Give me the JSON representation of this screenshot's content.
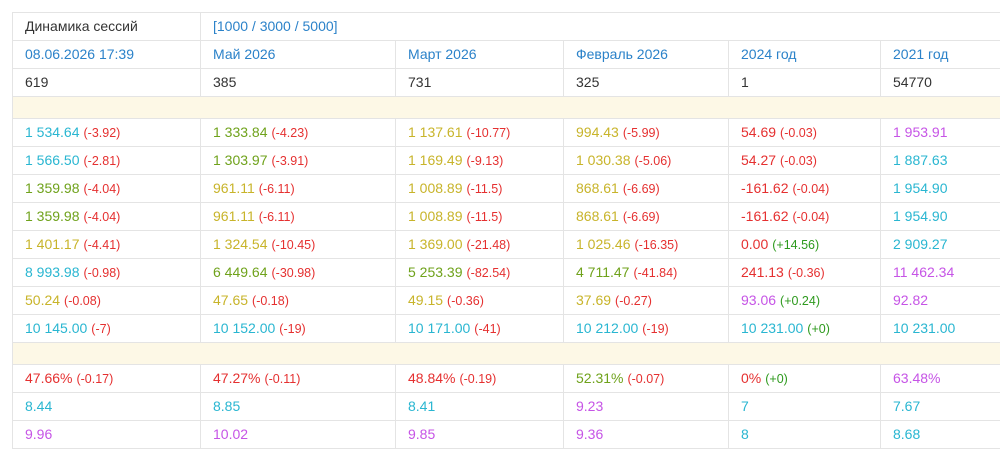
{
  "header": {
    "title": "Динамика сессий",
    "limits": "[1000 / 3000 / 5000]"
  },
  "columns": [
    {
      "label": "08.06.2026 17:39",
      "count": "619"
    },
    {
      "label": "Май 2026",
      "count": "385"
    },
    {
      "label": "Март 2026",
      "count": "731"
    },
    {
      "label": "Февраль 2026",
      "count": "325"
    },
    {
      "label": "2024 год",
      "count": "1"
    },
    {
      "label": "2021 год",
      "count": "54770"
    }
  ],
  "sections": [
    {
      "rows": [
        [
          {
            "value": "1 534.64",
            "change": "(-3.92)",
            "color": "#29b6d1",
            "change_color": "#e53030"
          },
          {
            "value": "1 333.84",
            "change": "(-4.23)",
            "color": "#6fa21b",
            "change_color": "#e53030"
          },
          {
            "value": "1 137.61",
            "change": "(-10.77)",
            "color": "#c8b42a",
            "change_color": "#e53030"
          },
          {
            "value": "994.43",
            "change": "(-5.99)",
            "color": "#c8b42a",
            "change_color": "#e53030"
          },
          {
            "value": "54.69",
            "change": "(-0.03)",
            "color": "#e53030",
            "change_color": "#e53030"
          },
          {
            "value": "1 953.91",
            "color": "#c654e6"
          }
        ],
        [
          {
            "value": "1 566.50",
            "change": "(-2.81)",
            "color": "#29b6d1",
            "change_color": "#e53030"
          },
          {
            "value": "1 303.97",
            "change": "(-3.91)",
            "color": "#6fa21b",
            "change_color": "#e53030"
          },
          {
            "value": "1 169.49",
            "change": "(-9.13)",
            "color": "#c8b42a",
            "change_color": "#e53030"
          },
          {
            "value": "1 030.38",
            "change": "(-5.06)",
            "color": "#c8b42a",
            "change_color": "#e53030"
          },
          {
            "value": "54.27",
            "change": "(-0.03)",
            "color": "#e53030",
            "change_color": "#e53030"
          },
          {
            "value": "1 887.63",
            "color": "#29b6d1"
          }
        ],
        [
          {
            "value": "1 359.98",
            "change": "(-4.04)",
            "color": "#6fa21b",
            "change_color": "#e53030"
          },
          {
            "value": "961.11",
            "change": "(-6.11)",
            "color": "#c8b42a",
            "change_color": "#e53030"
          },
          {
            "value": "1 008.89",
            "change": "(-11.5)",
            "color": "#c8b42a",
            "change_color": "#e53030"
          },
          {
            "value": "868.61",
            "change": "(-6.69)",
            "color": "#c8b42a",
            "change_color": "#e53030"
          },
          {
            "value": "-161.62",
            "change": "(-0.04)",
            "color": "#e53030",
            "change_color": "#e53030"
          },
          {
            "value": "1 954.90",
            "color": "#29b6d1"
          }
        ],
        [
          {
            "value": "1 359.98",
            "change": "(-4.04)",
            "color": "#6fa21b",
            "change_color": "#e53030"
          },
          {
            "value": "961.11",
            "change": "(-6.11)",
            "color": "#c8b42a",
            "change_color": "#e53030"
          },
          {
            "value": "1 008.89",
            "change": "(-11.5)",
            "color": "#c8b42a",
            "change_color": "#e53030"
          },
          {
            "value": "868.61",
            "change": "(-6.69)",
            "color": "#c8b42a",
            "change_color": "#e53030"
          },
          {
            "value": "-161.62",
            "change": "(-0.04)",
            "color": "#e53030",
            "change_color": "#e53030"
          },
          {
            "value": "1 954.90",
            "color": "#29b6d1"
          }
        ],
        [
          {
            "value": "1 401.17",
            "change": "(-4.41)",
            "color": "#c8b42a",
            "change_color": "#e53030"
          },
          {
            "value": "1 324.54",
            "change": "(-10.45)",
            "color": "#c8b42a",
            "change_color": "#e53030"
          },
          {
            "value": "1 369.00",
            "change": "(-21.48)",
            "color": "#c8b42a",
            "change_color": "#e53030"
          },
          {
            "value": "1 025.46",
            "change": "(-16.35)",
            "color": "#c8b42a",
            "change_color": "#e53030"
          },
          {
            "value": "0.00",
            "change": "(+14.56)",
            "color": "#e53030",
            "change_color": "#2e9a1e"
          },
          {
            "value": "2 909.27",
            "color": "#29b6d1"
          }
        ],
        [
          {
            "value": "8 993.98",
            "change": "(-0.98)",
            "color": "#29b6d1",
            "change_color": "#e53030"
          },
          {
            "value": "6 449.64",
            "change": "(-30.98)",
            "color": "#6fa21b",
            "change_color": "#e53030"
          },
          {
            "value": "5 253.39",
            "change": "(-82.54)",
            "color": "#6fa21b",
            "change_color": "#e53030"
          },
          {
            "value": "4 711.47",
            "change": "(-41.84)",
            "color": "#6fa21b",
            "change_color": "#e53030"
          },
          {
            "value": "241.13",
            "change": "(-0.36)",
            "color": "#e53030",
            "change_color": "#e53030"
          },
          {
            "value": "11 462.34",
            "color": "#c654e6"
          }
        ],
        [
          {
            "value": "50.24",
            "change": "(-0.08)",
            "color": "#c8b42a",
            "change_color": "#e53030"
          },
          {
            "value": "47.65",
            "change": "(-0.18)",
            "color": "#c8b42a",
            "change_color": "#e53030"
          },
          {
            "value": "49.15",
            "change": "(-0.36)",
            "color": "#c8b42a",
            "change_color": "#e53030"
          },
          {
            "value": "37.69",
            "change": "(-0.27)",
            "color": "#c8b42a",
            "change_color": "#e53030"
          },
          {
            "value": "93.06",
            "change": "(+0.24)",
            "color": "#c654e6",
            "change_color": "#2e9a1e"
          },
          {
            "value": "92.82",
            "color": "#c654e6"
          }
        ],
        [
          {
            "value": "10 145.00",
            "change": "(-7)",
            "color": "#29b6d1",
            "change_color": "#e53030"
          },
          {
            "value": "10 152.00",
            "change": "(-19)",
            "color": "#29b6d1",
            "change_color": "#e53030"
          },
          {
            "value": "10 171.00",
            "change": "(-41)",
            "color": "#29b6d1",
            "change_color": "#e53030"
          },
          {
            "value": "10 212.00",
            "change": "(-19)",
            "color": "#29b6d1",
            "change_color": "#e53030"
          },
          {
            "value": "10 231.00",
            "change": "(+0)",
            "color": "#29b6d1",
            "change_color": "#2e9a1e"
          },
          {
            "value": "10 231.00",
            "color": "#29b6d1"
          }
        ]
      ]
    },
    {
      "rows": [
        [
          {
            "value": "47.66%",
            "change": "(-0.17)",
            "color": "#e53030",
            "change_color": "#e53030"
          },
          {
            "value": "47.27%",
            "change": "(-0.11)",
            "color": "#e53030",
            "change_color": "#e53030"
          },
          {
            "value": "48.84%",
            "change": "(-0.19)",
            "color": "#e53030",
            "change_color": "#e53030"
          },
          {
            "value": "52.31%",
            "change": "(-0.07)",
            "color": "#6fa21b",
            "change_color": "#e53030"
          },
          {
            "value": "0%",
            "change": "(+0)",
            "color": "#e53030",
            "change_color": "#2e9a1e"
          },
          {
            "value": "63.48%",
            "color": "#c654e6"
          }
        ],
        [
          {
            "value": "8.44",
            "color": "#29b6d1"
          },
          {
            "value": "8.85",
            "color": "#29b6d1"
          },
          {
            "value": "8.41",
            "color": "#29b6d1"
          },
          {
            "value": "9.23",
            "color": "#c654e6"
          },
          {
            "value": "7",
            "color": "#29b6d1"
          },
          {
            "value": "7.67",
            "color": "#29b6d1"
          }
        ],
        [
          {
            "value": "9.96",
            "color": "#c654e6"
          },
          {
            "value": "10.02",
            "color": "#c654e6"
          },
          {
            "value": "9.85",
            "color": "#c654e6"
          },
          {
            "value": "9.36",
            "color": "#c654e6"
          },
          {
            "value": "8",
            "color": "#29b6d1"
          },
          {
            "value": "8.68",
            "color": "#29b6d1"
          }
        ]
      ]
    }
  ]
}
